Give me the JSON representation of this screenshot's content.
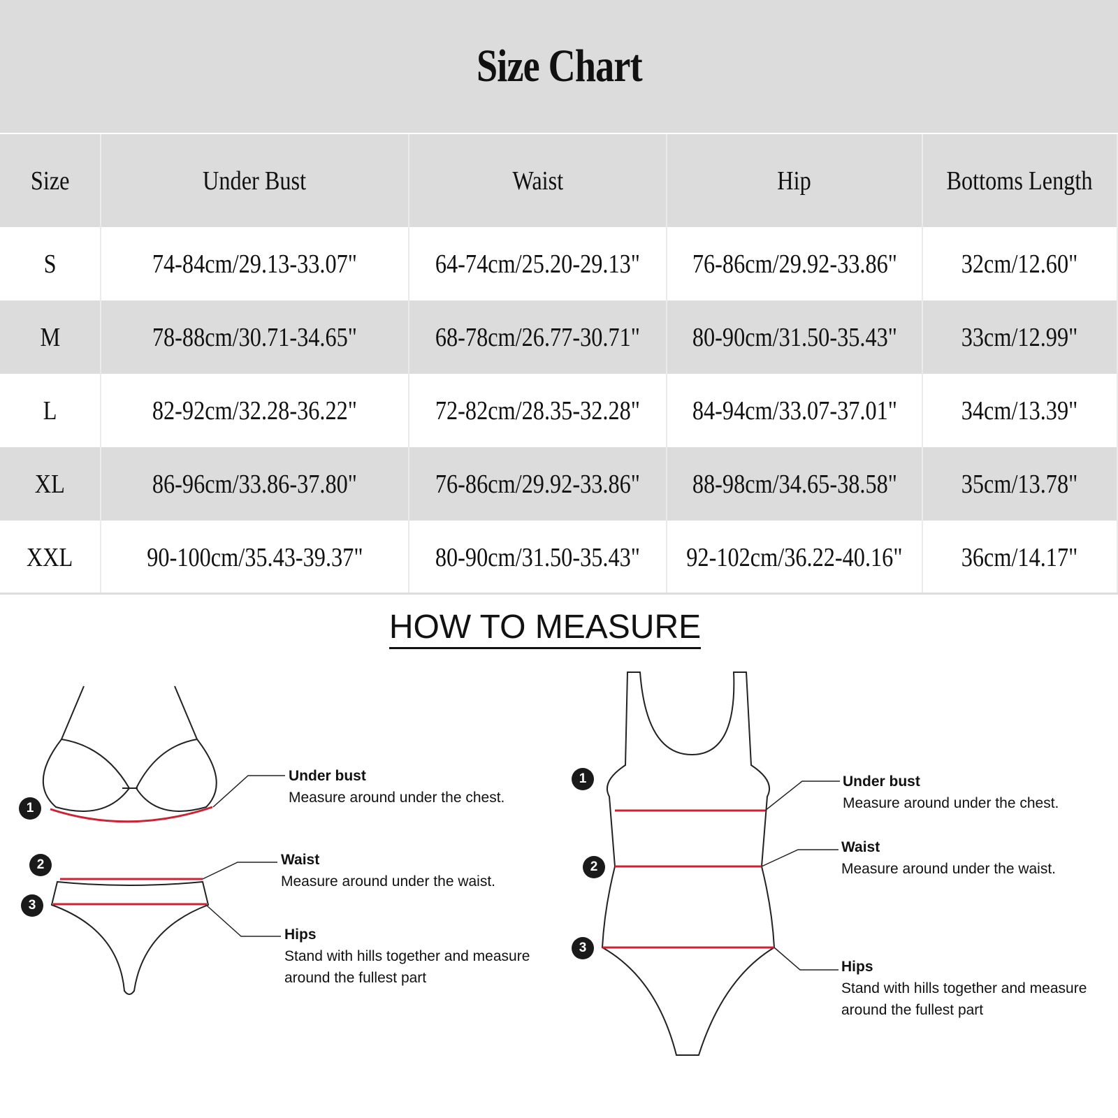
{
  "title": "Size Chart",
  "table": {
    "headers": [
      "Size",
      "Under Bust",
      "Waist",
      "Hip",
      "Bottoms Length"
    ],
    "rows": [
      [
        "S",
        "74-84cm/29.13-33.07\"",
        "64-74cm/25.20-29.13\"",
        "76-86cm/29.92-33.86\"",
        "32cm/12.60\""
      ],
      [
        "M",
        "78-88cm/30.71-34.65\"",
        "68-78cm/26.77-30.71\"",
        "80-90cm/31.50-35.43\"",
        "33cm/12.99\""
      ],
      [
        "L",
        "82-92cm/32.28-36.22\"",
        "72-82cm/28.35-32.28\"",
        "84-94cm/33.07-37.01\"",
        "34cm/13.39\""
      ],
      [
        "XL",
        "86-96cm/33.86-37.80\"",
        "76-86cm/29.92-33.86\"",
        "88-98cm/34.65-38.58\"",
        "35cm/13.78\""
      ],
      [
        "XXL",
        "90-100cm/35.43-39.37\"",
        "80-90cm/31.50-35.43\"",
        "92-102cm/36.22-40.16\"",
        "36cm/14.17\""
      ]
    ]
  },
  "measure": {
    "title": "HOW TO MEASURE",
    "markers": [
      "1",
      "2",
      "3"
    ],
    "labels": {
      "under_bust": {
        "name": "Under bust",
        "desc": "Measure around under the chest."
      },
      "waist": {
        "name": "Waist",
        "desc": "Measure around under the waist."
      },
      "hips": {
        "name": "Hips",
        "desc1": "Stand with hills together and measure",
        "desc2": "around  the fullest part"
      }
    }
  },
  "colors": {
    "band": "#dcdcdc",
    "measure_line": "#cc2233"
  }
}
